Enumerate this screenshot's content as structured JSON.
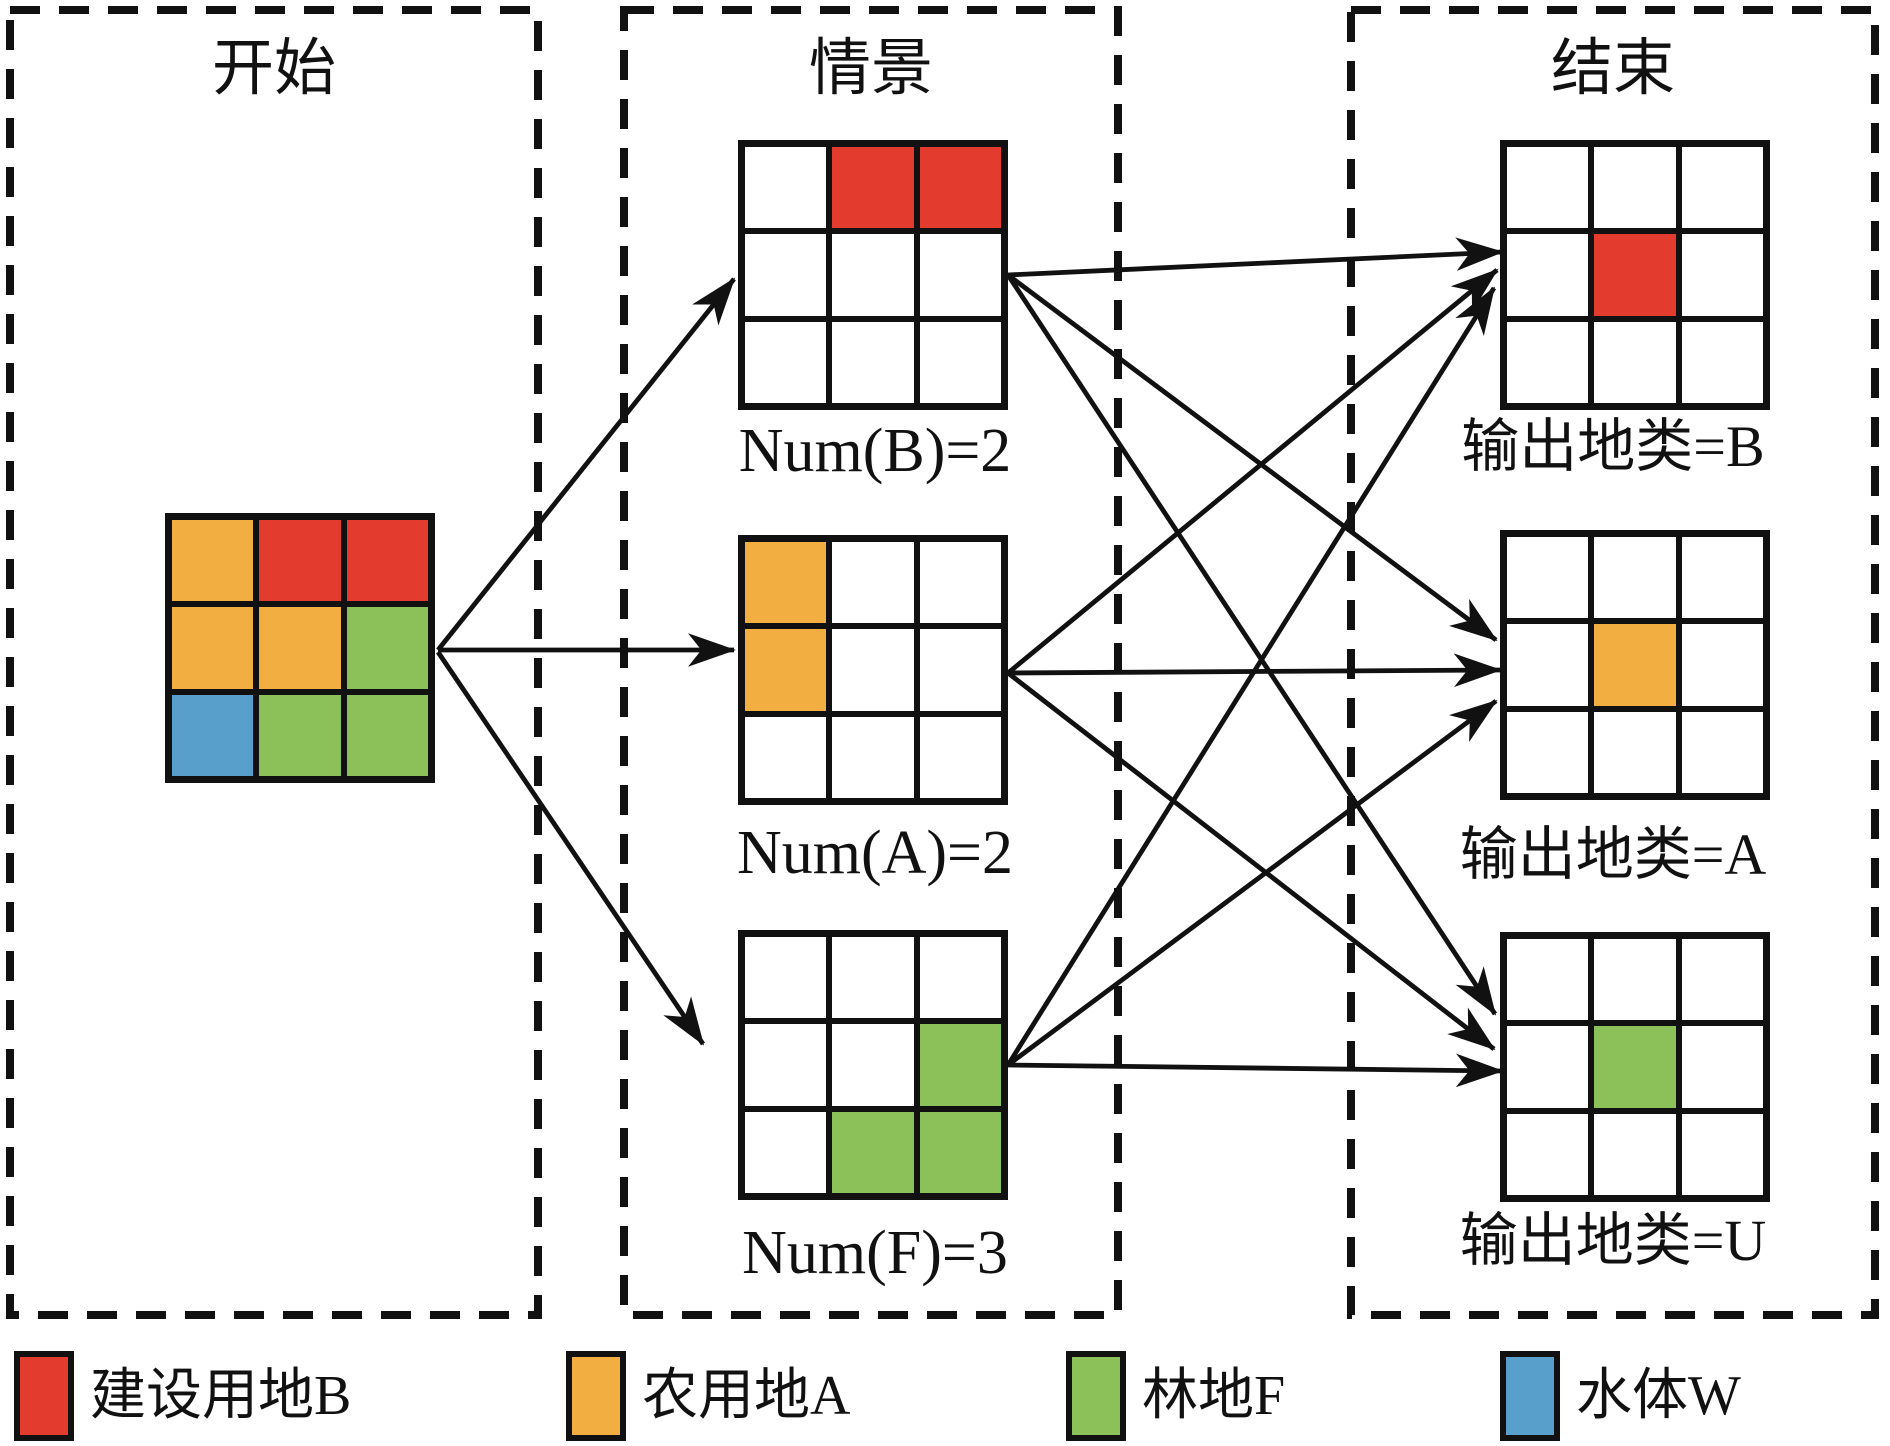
{
  "panels": [
    {
      "id": "start",
      "title": "开始"
    },
    {
      "id": "scenario",
      "title": "情景"
    },
    {
      "id": "end",
      "title": "结束"
    }
  ],
  "legend_colors": {
    "B": "#e33b2d",
    "A": "#f3ae41",
    "F": "#8cc058",
    "W": "#58a0cb"
  },
  "grids": {
    "start": {
      "cells": [
        [
          "A",
          "B",
          "B"
        ],
        [
          "A",
          "A",
          "F"
        ],
        [
          "W",
          "F",
          "F"
        ]
      ]
    },
    "scenB": {
      "cells": [
        [
          "",
          "B",
          "B"
        ],
        [
          "",
          "",
          ""
        ],
        [
          "",
          "",
          ""
        ]
      ],
      "label": "Num(B)=2"
    },
    "scenA": {
      "cells": [
        [
          "A",
          "",
          ""
        ],
        [
          "A",
          "",
          ""
        ],
        [
          "",
          "",
          ""
        ]
      ],
      "label": "Num(A)=2"
    },
    "scenF": {
      "cells": [
        [
          "",
          "",
          ""
        ],
        [
          "",
          "",
          "F"
        ],
        [
          "",
          "F",
          "F"
        ]
      ],
      "label": "Num(F)=3"
    },
    "outB": {
      "cells": [
        [
          "",
          "",
          ""
        ],
        [
          "",
          "B",
          ""
        ],
        [
          "",
          "",
          ""
        ]
      ],
      "label": "输出地类=B"
    },
    "outA": {
      "cells": [
        [
          "",
          "",
          ""
        ],
        [
          "",
          "A",
          ""
        ],
        [
          "",
          "",
          ""
        ]
      ],
      "label": "输出地类=A"
    },
    "outU": {
      "cells": [
        [
          "",
          "",
          ""
        ],
        [
          "",
          "F",
          ""
        ],
        [
          "",
          "",
          ""
        ]
      ],
      "label": "输出地类=U"
    }
  },
  "edges": [
    {
      "from": "start",
      "to": "scenB"
    },
    {
      "from": "start",
      "to": "scenA"
    },
    {
      "from": "start",
      "to": "scenF"
    },
    {
      "from": "scenB",
      "to": "outB"
    },
    {
      "from": "scenB",
      "to": "outA"
    },
    {
      "from": "scenB",
      "to": "outU"
    },
    {
      "from": "scenA",
      "to": "outB"
    },
    {
      "from": "scenA",
      "to": "outA"
    },
    {
      "from": "scenA",
      "to": "outU"
    },
    {
      "from": "scenF",
      "to": "outB"
    },
    {
      "from": "scenF",
      "to": "outA"
    },
    {
      "from": "scenF",
      "to": "outU"
    }
  ],
  "legend": {
    "items": [
      {
        "key": "B",
        "label": "建设用地B"
      },
      {
        "key": "A",
        "label": "农用地A"
      },
      {
        "key": "F",
        "label": "林地F"
      },
      {
        "key": "W",
        "label": "水体W"
      }
    ]
  }
}
